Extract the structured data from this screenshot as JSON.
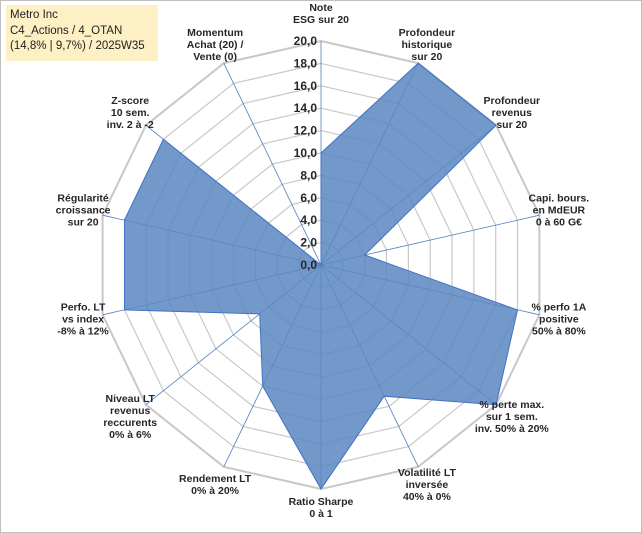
{
  "info": {
    "company": "Metro Inc",
    "category": "C4_Actions / 4_OTAN",
    "stats": "(14,8% | 9,7%) / 2025W35"
  },
  "chart_data": {
    "type": "radar",
    "title": "",
    "rmax": 20,
    "ticks": [
      "0,0",
      "2,0",
      "4,0",
      "6,0",
      "8,0",
      "10,0",
      "12,0",
      "14,0",
      "16,0",
      "18,0",
      "20,0"
    ],
    "grid": true,
    "colors": {
      "fill": "#5b87c2",
      "stroke": "#4472c4",
      "grid": "#c8c8c8",
      "spoke": "#4f81bd"
    },
    "axes": [
      {
        "label": [
          "Note",
          "ESG sur 20"
        ],
        "value": 10
      },
      {
        "label": [
          "Profondeur",
          "historique",
          "sur 20"
        ],
        "value": 20
      },
      {
        "label": [
          "Profondeur",
          "revenus",
          "sur 20"
        ],
        "value": 20
      },
      {
        "label": [
          "Capi. bours.",
          "en MdEUR",
          "0 à 60 G€"
        ],
        "value": 4
      },
      {
        "label": [
          "% perfo 1A",
          "positive",
          "50% à 80%"
        ],
        "value": 18
      },
      {
        "label": [
          "% perte max.",
          "sur 1 sem.",
          "inv. 50% à 20%"
        ],
        "value": 20
      },
      {
        "label": [
          "Volatilité LT",
          "inversée",
          "40% à 0%"
        ],
        "value": 13
      },
      {
        "label": [
          "Ratio Sharpe",
          "0 à 1"
        ],
        "value": 20
      },
      {
        "label": [
          "Rendement LT",
          "0% à 20%"
        ],
        "value": 12
      },
      {
        "label": [
          "Niveau LT",
          "revenus",
          "reccurents",
          "0% à 6%"
        ],
        "value": 7
      },
      {
        "label": [
          "Perfo. LT",
          "vs index",
          "-8% à 12%"
        ],
        "value": 18
      },
      {
        "label": [
          "Régularité",
          "croissance",
          "sur 20"
        ],
        "value": 18
      },
      {
        "label": [
          "Z-score",
          "10 sem.",
          "inv. 2 à -2"
        ],
        "value": 18
      },
      {
        "label": [
          "Momentum",
          "Achat (20) /",
          "Vente (0)"
        ],
        "value": 0
      }
    ]
  }
}
